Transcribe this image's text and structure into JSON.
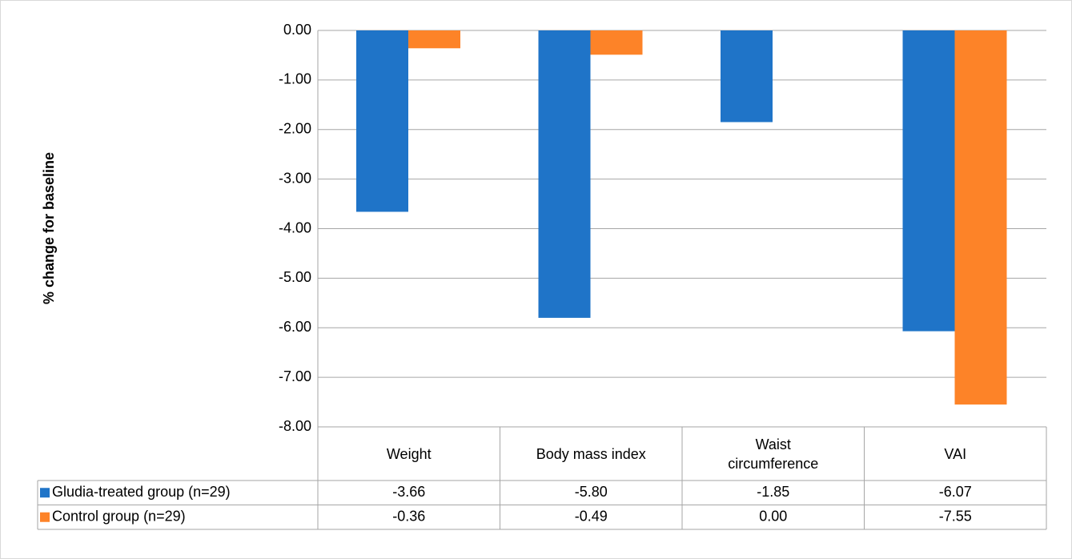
{
  "chart_data": {
    "type": "bar",
    "ylabel": "% change for baseline",
    "categories": [
      "Weight",
      "Body mass index",
      "Waist circumference",
      "VAI"
    ],
    "series": [
      {
        "name": "Gludia-treated group (n=29)",
        "color": "#1f74c8",
        "values": [
          -3.66,
          -5.8,
          -1.85,
          -6.07
        ],
        "value_labels": [
          "-3.66",
          "-5.80",
          "-1.85",
          "-6.07"
        ]
      },
      {
        "name": "Control group (n=29)",
        "color": "#fd8328",
        "values": [
          -0.36,
          -0.49,
          0,
          -7.55
        ],
        "value_labels": [
          "-0.36",
          "-0.49",
          "0.00",
          "-7.55"
        ]
      }
    ],
    "ylim": [
      -8,
      0
    ],
    "yticks": [
      {
        "value": 0,
        "label": "0.00"
      },
      {
        "value": -1,
        "label": "-1.00"
      },
      {
        "value": -2,
        "label": "-2.00"
      },
      {
        "value": -3,
        "label": "-3.00"
      },
      {
        "value": -4,
        "label": "-4.00"
      },
      {
        "value": -5,
        "label": "-5.00"
      },
      {
        "value": -6,
        "label": "-6.00"
      },
      {
        "value": -7,
        "label": "-7.00"
      },
      {
        "value": -8,
        "label": "-8.00"
      }
    ],
    "grid": true,
    "data_table": true
  }
}
